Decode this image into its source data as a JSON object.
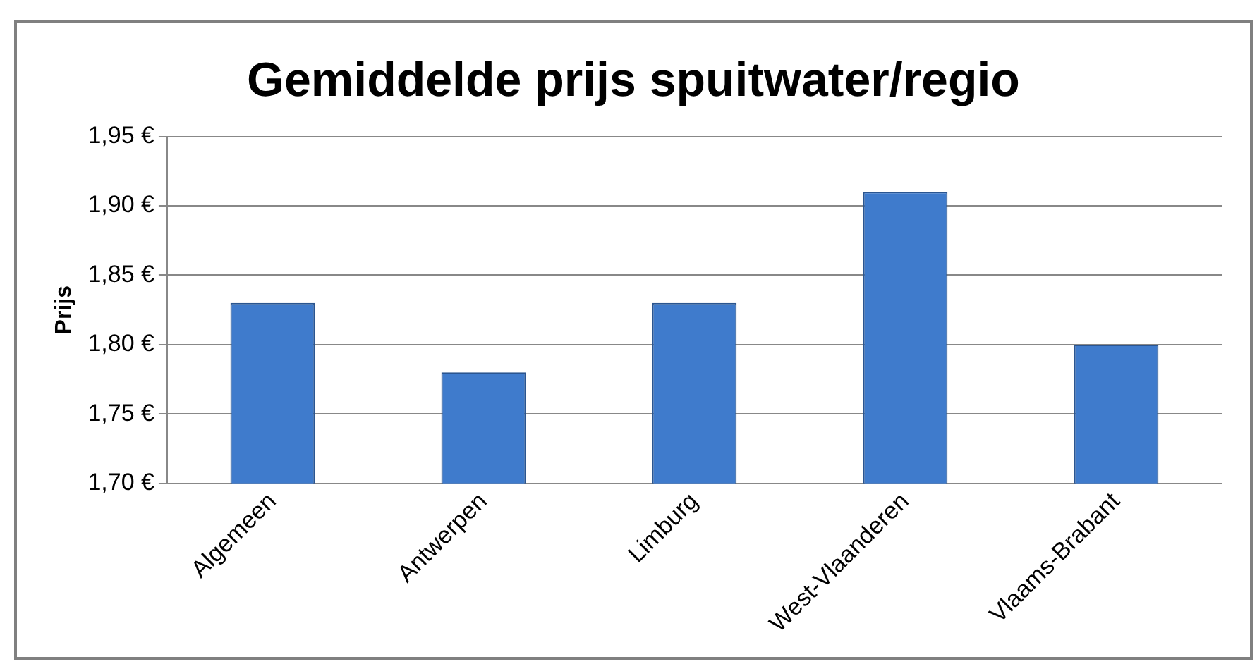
{
  "chart_data": {
    "type": "bar",
    "title": "Gemiddelde prijs spuitwater/regio",
    "ylabel": "Prijs",
    "categories": [
      "Algemeen",
      "Antwerpen",
      "Limburg",
      "West-Vlaanderen",
      "Vlaams-Brabant"
    ],
    "values": [
      1.83,
      1.78,
      1.83,
      1.91,
      1.8
    ],
    "color": "#3f7bcc",
    "ylim": [
      1.7,
      1.95
    ],
    "yticks": [
      {
        "value": 1.7,
        "label": "1,70 €"
      },
      {
        "value": 1.75,
        "label": "1,75 €"
      },
      {
        "value": 1.8,
        "label": "1,80 €"
      },
      {
        "value": 1.85,
        "label": "1,85 €"
      },
      {
        "value": 1.9,
        "label": "1,90 €"
      },
      {
        "value": 1.95,
        "label": "1,95 €"
      }
    ],
    "grid": "y",
    "legend": false
  }
}
